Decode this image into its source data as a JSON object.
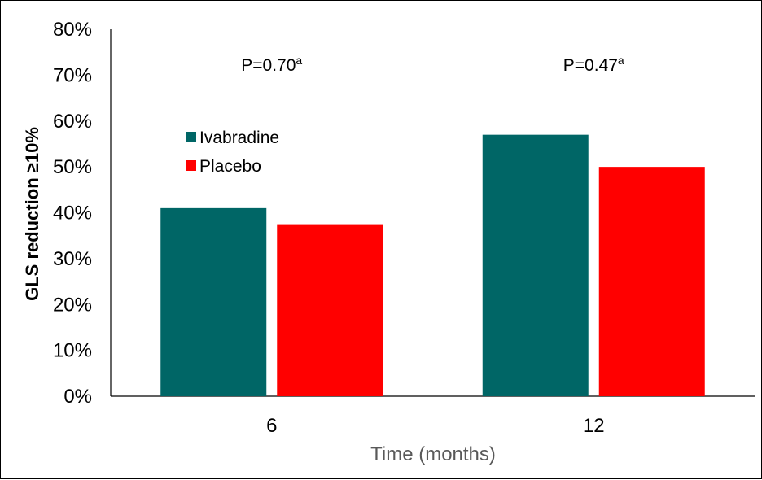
{
  "chart_data": {
    "type": "bar",
    "categories": [
      "6",
      "12"
    ],
    "series": [
      {
        "name": "Ivabradine",
        "values": [
          41,
          57
        ],
        "color": "#006666"
      },
      {
        "name": "Placebo",
        "values": [
          37.5,
          50
        ],
        "color": "#ff0000"
      }
    ],
    "xlabel": "Time (months)",
    "ylabel": "GLS reduction ≥10%",
    "ylim": [
      0,
      80
    ],
    "yticks": [
      "0%",
      "10%",
      "20%",
      "30%",
      "40%",
      "50%",
      "60%",
      "70%",
      "80%"
    ],
    "annotations": [
      {
        "text": "P=0.70",
        "superscript": "a",
        "category": "6"
      },
      {
        "text": "P=0.47",
        "superscript": "a",
        "category": "12"
      }
    ],
    "legend": "upper-left inside plot",
    "grid": false
  }
}
